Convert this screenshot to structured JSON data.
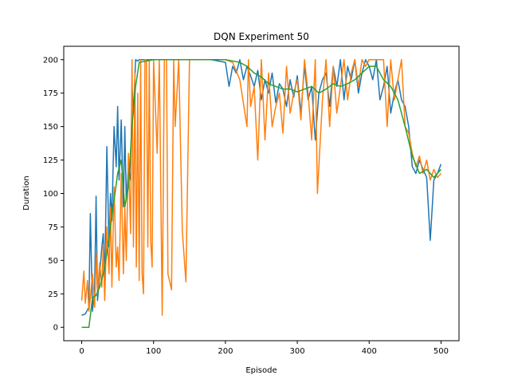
{
  "chart_data": {
    "type": "line",
    "title": "DQN Experiment 50",
    "xlabel": "Episode",
    "ylabel": "Duration",
    "xlim": [
      -25,
      525
    ],
    "ylim": [
      -10,
      210
    ],
    "xticks": [
      0,
      100,
      200,
      300,
      400,
      500
    ],
    "yticks": [
      0,
      25,
      50,
      75,
      100,
      125,
      150,
      175,
      200
    ],
    "grid": false,
    "legend": "none",
    "series": [
      {
        "color": "#1f77b4",
        "x": [
          0,
          5,
          10,
          12,
          15,
          18,
          20,
          22,
          25,
          28,
          30,
          32,
          35,
          38,
          40,
          42,
          45,
          48,
          50,
          52,
          55,
          58,
          60,
          62,
          65,
          68,
          70,
          72,
          75,
          78,
          80,
          90,
          100,
          120,
          140,
          160,
          180,
          200,
          205,
          210,
          215,
          220,
          225,
          230,
          235,
          240,
          245,
          250,
          255,
          260,
          265,
          270,
          275,
          280,
          285,
          290,
          295,
          300,
          305,
          310,
          315,
          320,
          325,
          330,
          335,
          340,
          345,
          350,
          355,
          360,
          365,
          370,
          375,
          380,
          385,
          390,
          395,
          400,
          405,
          410,
          415,
          420,
          425,
          430,
          435,
          440,
          445,
          450,
          455,
          460,
          465,
          470,
          475,
          480,
          485,
          490,
          495,
          500
        ],
        "y": [
          9,
          10,
          15,
          85,
          12,
          30,
          98,
          20,
          40,
          60,
          70,
          35,
          135,
          60,
          100,
          80,
          150,
          120,
          165,
          110,
          155,
          90,
          150,
          95,
          120,
          110,
          180,
          160,
          200,
          199,
          200,
          200,
          200,
          200,
          200,
          200,
          200,
          198,
          180,
          195,
          190,
          200,
          185,
          195,
          188,
          180,
          192,
          170,
          185,
          175,
          190,
          168,
          182,
          178,
          165,
          185,
          172,
          188,
          160,
          195,
          170,
          180,
          140,
          175,
          185,
          190,
          165,
          195,
          180,
          200,
          170,
          195,
          185,
          200,
          175,
          190,
          200,
          195,
          185,
          200,
          170,
          180,
          195,
          160,
          175,
          185,
          170,
          165,
          150,
          120,
          115,
          125,
          118,
          112,
          65,
          110,
          115,
          122
        ]
      },
      {
        "color": "#ff7f0e",
        "x": [
          0,
          3,
          5,
          8,
          10,
          12,
          15,
          18,
          20,
          22,
          25,
          28,
          30,
          32,
          35,
          38,
          40,
          42,
          45,
          48,
          50,
          52,
          55,
          58,
          60,
          62,
          65,
          68,
          70,
          72,
          74,
          76,
          78,
          80,
          82,
          84,
          86,
          88,
          90,
          92,
          94,
          96,
          98,
          100,
          105,
          108,
          112,
          115,
          118,
          120,
          125,
          128,
          130,
          135,
          140,
          145,
          150,
          160,
          180,
          200,
          210,
          220,
          230,
          232,
          235,
          240,
          245,
          250,
          255,
          260,
          265,
          270,
          275,
          280,
          285,
          290,
          295,
          300,
          305,
          310,
          315,
          320,
          325,
          328,
          330,
          335,
          340,
          345,
          350,
          355,
          360,
          365,
          370,
          375,
          380,
          385,
          390,
          395,
          400,
          410,
          420,
          425,
          430,
          435,
          440,
          445,
          450,
          455,
          460,
          465,
          470,
          475,
          480,
          485,
          490,
          495,
          500
        ],
        "y": [
          20,
          42,
          18,
          35,
          12,
          22,
          40,
          15,
          55,
          25,
          48,
          30,
          62,
          20,
          75,
          40,
          90,
          30,
          105,
          45,
          60,
          35,
          115,
          40,
          90,
          50,
          130,
          70,
          200,
          60,
          190,
          45,
          175,
          35,
          200,
          40,
          25,
          200,
          200,
          60,
          200,
          65,
          45,
          200,
          130,
          200,
          9,
          200,
          200,
          40,
          28,
          200,
          150,
          200,
          72,
          34,
          200,
          200,
          200,
          200,
          198,
          185,
          150,
          200,
          165,
          180,
          125,
          200,
          140,
          190,
          150,
          165,
          175,
          145,
          195,
          160,
          175,
          185,
          155,
          200,
          175,
          140,
          200,
          100,
          120,
          170,
          200,
          150,
          195,
          160,
          180,
          200,
          170,
          190,
          200,
          180,
          200,
          195,
          200,
          200,
          200,
          150,
          200,
          170,
          185,
          200,
          150,
          145,
          130,
          120,
          128,
          115,
          125,
          110,
          118,
          112,
          115
        ]
      },
      {
        "color": "#2ca02c",
        "x": [
          0,
          5,
          10,
          15,
          20,
          25,
          30,
          35,
          40,
          45,
          50,
          55,
          60,
          65,
          70,
          75,
          80,
          90,
          100,
          120,
          140,
          160,
          180,
          200,
          210,
          220,
          230,
          240,
          250,
          260,
          270,
          280,
          290,
          300,
          310,
          320,
          330,
          340,
          350,
          360,
          370,
          380,
          390,
          400,
          410,
          420,
          430,
          440,
          450,
          460,
          470,
          480,
          490,
          500
        ],
        "y": [
          0,
          0,
          0,
          22,
          24,
          30,
          40,
          55,
          75,
          95,
          115,
          125,
          90,
          105,
          150,
          180,
          198,
          199,
          200,
          200,
          200,
          200,
          200,
          200,
          199,
          198,
          195,
          190,
          187,
          182,
          180,
          178,
          178,
          176,
          178,
          180,
          175,
          178,
          182,
          180,
          182,
          185,
          190,
          195,
          195,
          185,
          180,
          170,
          150,
          128,
          115,
          118,
          112,
          118
        ]
      }
    ]
  }
}
